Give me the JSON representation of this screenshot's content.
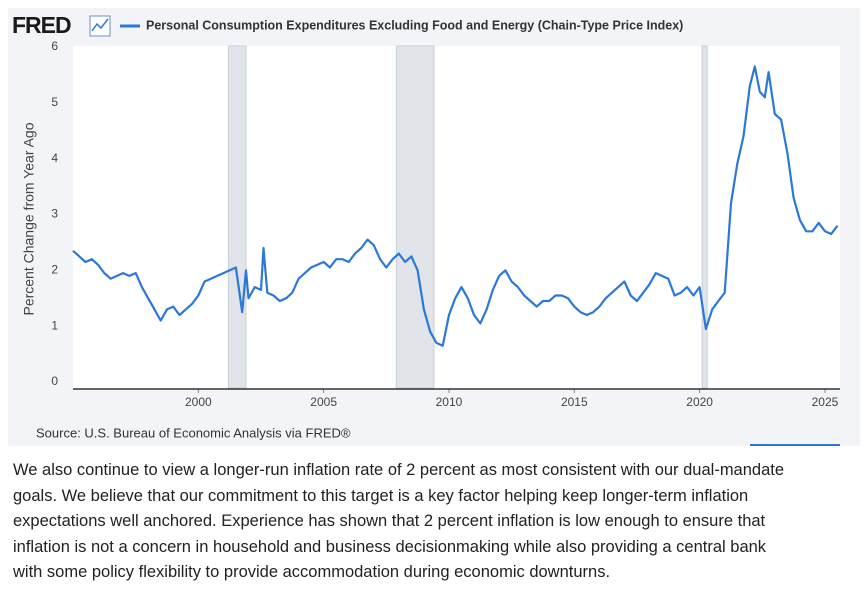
{
  "logo": "FRED",
  "chart_data": {
    "type": "line",
    "y_label": "Percent Change from Year Ago",
    "source": "Source: U.S. Bureau of Economic Analysis via FRED®",
    "xlim": [
      1995,
      2025.6
    ],
    "xticks": [
      2000,
      2005,
      2010,
      2015,
      2020,
      2025
    ],
    "ylim": [
      0,
      6
    ],
    "yticks": [
      0,
      1,
      2,
      3,
      4,
      5,
      6
    ],
    "grid": false,
    "shaded_periods": [
      [
        2001.2,
        2001.9
      ],
      [
        2007.9,
        2009.4
      ],
      [
        2020.1,
        2020.3
      ]
    ],
    "x": [
      1995.0,
      1995.25,
      1995.5,
      1995.75,
      1996.0,
      1996.25,
      1996.5,
      1996.75,
      1997.0,
      1997.25,
      1997.5,
      1997.75,
      1998.0,
      1998.25,
      1998.5,
      1998.75,
      1999.0,
      1999.25,
      1999.5,
      1999.75,
      2000.0,
      2000.25,
      2000.5,
      2000.75,
      2001.0,
      2001.25,
      2001.5,
      2001.75,
      2001.9,
      2002.0,
      2002.25,
      2002.5,
      2002.6,
      2002.75,
      2003.0,
      2003.25,
      2003.5,
      2003.75,
      2004.0,
      2004.25,
      2004.5,
      2004.75,
      2005.0,
      2005.25,
      2005.5,
      2005.75,
      2006.0,
      2006.25,
      2006.5,
      2006.75,
      2007.0,
      2007.25,
      2007.5,
      2007.75,
      2008.0,
      2008.25,
      2008.5,
      2008.75,
      2009.0,
      2009.25,
      2009.5,
      2009.75,
      2010.0,
      2010.25,
      2010.5,
      2010.75,
      2011.0,
      2011.25,
      2011.5,
      2011.75,
      2012.0,
      2012.25,
      2012.5,
      2012.75,
      2013.0,
      2013.25,
      2013.5,
      2013.75,
      2014.0,
      2014.25,
      2014.5,
      2014.75,
      2015.0,
      2015.25,
      2015.5,
      2015.75,
      2016.0,
      2016.25,
      2016.5,
      2016.75,
      2017.0,
      2017.25,
      2017.5,
      2017.75,
      2018.0,
      2018.25,
      2018.5,
      2018.75,
      2019.0,
      2019.25,
      2019.5,
      2019.75,
      2020.0,
      2020.25,
      2020.5,
      2020.75,
      2021.0,
      2021.25,
      2021.5,
      2021.75,
      2022.0,
      2022.2,
      2022.4,
      2022.6,
      2022.75,
      2023.0,
      2023.25,
      2023.5,
      2023.75,
      2024.0,
      2024.25,
      2024.5,
      2024.75,
      2025.0,
      2025.25,
      2025.5
    ],
    "series": [
      {
        "name": "Personal Consumption Expenditures Excluding Food and Energy (Chain-Type Price Index)",
        "color": "#2b78d8",
        "values": [
          2.35,
          2.25,
          2.15,
          2.2,
          2.1,
          1.95,
          1.85,
          1.9,
          1.95,
          1.9,
          1.95,
          1.7,
          1.5,
          1.3,
          1.1,
          1.3,
          1.35,
          1.2,
          1.3,
          1.4,
          1.55,
          1.8,
          1.85,
          1.9,
          1.95,
          2.0,
          2.05,
          1.25,
          2.0,
          1.5,
          1.7,
          1.65,
          2.4,
          1.6,
          1.55,
          1.45,
          1.5,
          1.6,
          1.85,
          1.95,
          2.05,
          2.1,
          2.15,
          2.05,
          2.2,
          2.2,
          2.15,
          2.3,
          2.4,
          2.55,
          2.45,
          2.2,
          2.05,
          2.2,
          2.3,
          2.15,
          2.25,
          2.0,
          1.3,
          0.9,
          0.7,
          0.65,
          1.2,
          1.5,
          1.7,
          1.5,
          1.2,
          1.05,
          1.3,
          1.65,
          1.9,
          2.0,
          1.8,
          1.7,
          1.55,
          1.45,
          1.35,
          1.45,
          1.45,
          1.55,
          1.55,
          1.5,
          1.35,
          1.25,
          1.2,
          1.25,
          1.35,
          1.5,
          1.6,
          1.7,
          1.8,
          1.55,
          1.45,
          1.6,
          1.75,
          1.95,
          1.9,
          1.85,
          1.55,
          1.6,
          1.7,
          1.55,
          1.7,
          0.95,
          1.3,
          1.45,
          1.6,
          3.2,
          3.9,
          4.4,
          5.3,
          5.65,
          5.2,
          5.1,
          5.55,
          4.8,
          4.7,
          4.1,
          3.3,
          2.9,
          2.7,
          2.7,
          2.85,
          2.7,
          2.65,
          2.8
        ]
      }
    ]
  },
  "paragraph": [
    "We also continue to view a longer-run inflation rate of 2 percent as most consistent with our dual-mandate",
    "goals. We believe that our commitment to this target is a key factor helping keep longer-term inflation",
    "expectations well anchored. Experience has shown that 2 percent inflation is low enough to ensure that",
    "inflation is not a concern in household and business decisionmaking while also providing a central bank",
    "with some policy flexibility to provide accommodation during economic downturns."
  ]
}
